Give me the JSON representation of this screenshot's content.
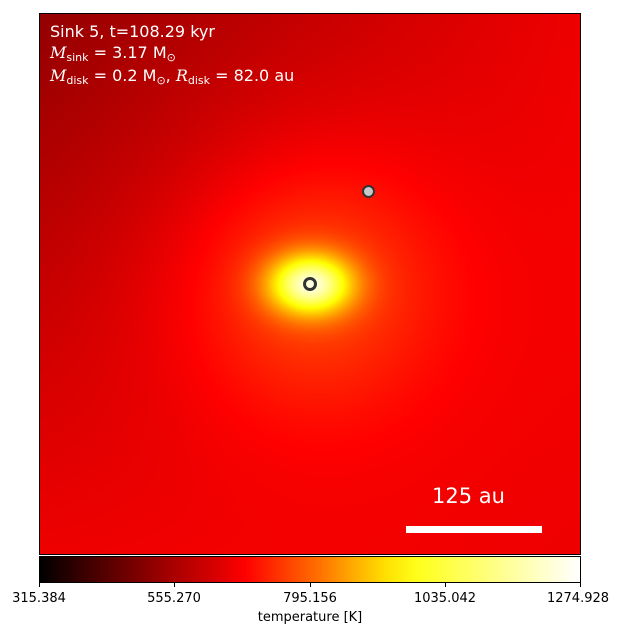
{
  "panel": {
    "line1": "Sink 5, t=108.29 kyr",
    "msink_label": "M",
    "msink_sub": "sink",
    "msink_value": " = 3.17 M",
    "msink_sub2": "⊙",
    "mdisk_label": "M",
    "mdisk_sub": "disk",
    "mdisk_value": " = 0.2 M",
    "mdisk_sub2": "⊙",
    "rdisk_sep": ", ",
    "rdisk_label": "R",
    "rdisk_sub": "disk",
    "rdisk_value": " = 82.0 au"
  },
  "scalebar": {
    "label": "125 au"
  },
  "colorbar": {
    "label": "temperature [K]",
    "ticks": [
      "315.384",
      "555.270",
      "795.156",
      "1035.042",
      "1274.928"
    ],
    "min": 315.384,
    "max": 1274.928,
    "colormap": "hot"
  },
  "colors": {
    "background_field": "#8b0000",
    "hotspot": "#ffff40",
    "sink_outline": "#333333",
    "secondary_sink_fill": "#c0c0c0"
  }
}
